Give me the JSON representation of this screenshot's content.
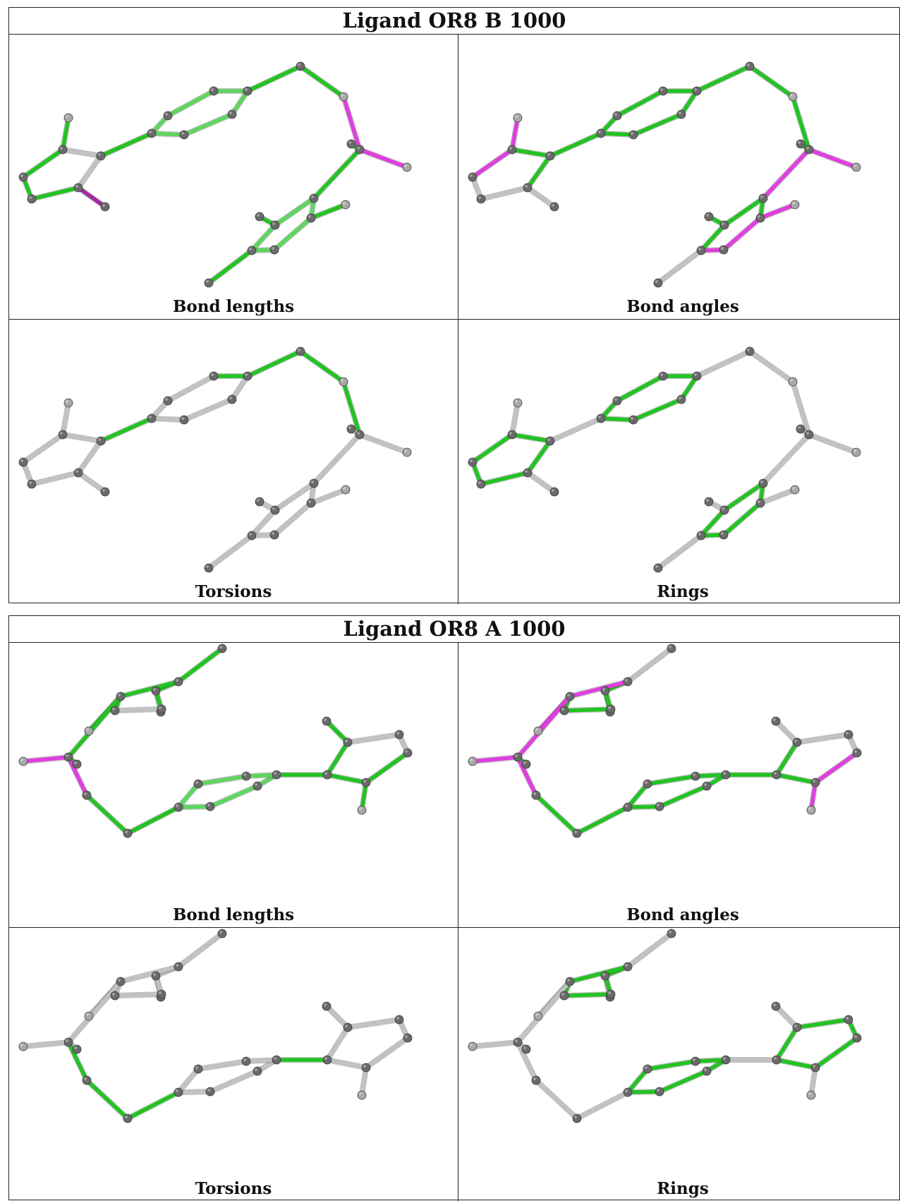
{
  "panels": [
    {
      "title": "Ligand OR8 B 1000",
      "captions": [
        "Bond lengths",
        "Bond angles",
        "Torsions",
        "Rings"
      ]
    },
    {
      "title": "Ligand OR8 A 1000",
      "captions": [
        "Bond lengths",
        "Bond angles",
        "Torsions",
        "Rings"
      ]
    }
  ],
  "colors": {
    "green": "#22c322",
    "green_light": "#5ed65e",
    "green_dark": "#148a14",
    "magenta": "#e03ee0",
    "magenta_dark": "#a02aa0",
    "gray_bond": "#c2c2c2",
    "gray_bond_dark": "#8a8a8a",
    "atom_dark": "#6a6a6a",
    "atom_light": "#a8a8a8"
  }
}
